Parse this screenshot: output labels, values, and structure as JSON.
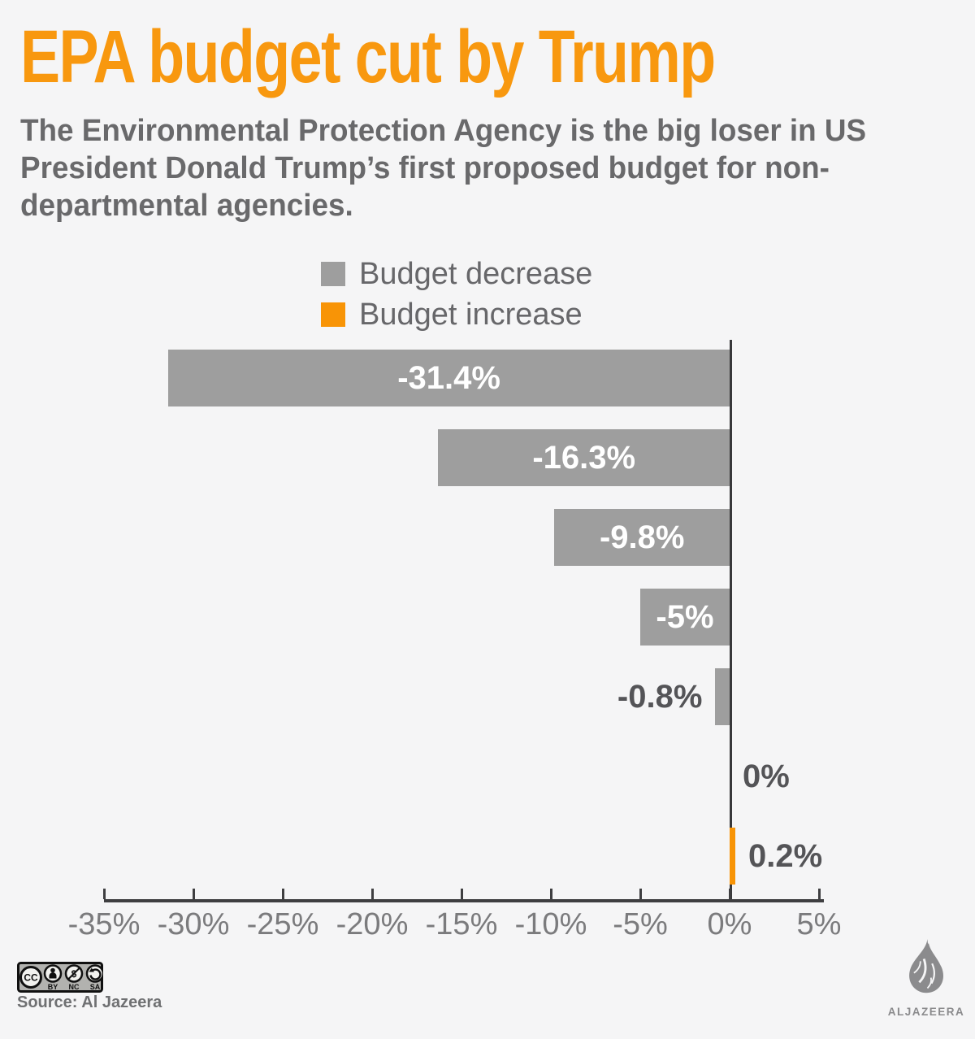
{
  "header": {
    "title": "EPA budget cut by Trump",
    "subtitle": "The Environmental Protection Agency is the big loser in US President Donald Trump’s first proposed budget for non-departmental agencies."
  },
  "legend": {
    "items": [
      {
        "label": "Budget decrease",
        "color": "#9e9e9e"
      },
      {
        "label": "Budget increase",
        "color": "#f89406"
      }
    ]
  },
  "chart_data": {
    "type": "bar",
    "orientation": "horizontal",
    "title": "EPA budget cut by Trump",
    "xlabel": "",
    "ylabel": "",
    "xlim": [
      -35,
      5
    ],
    "grid": false,
    "legend_position": "top",
    "x_tick_values": [
      -35,
      -30,
      -25,
      -20,
      -15,
      -10,
      -5,
      0,
      5
    ],
    "x_tick_labels": [
      "-35%",
      "-30%",
      "-25%",
      "-20%",
      "-15%",
      "-10%",
      "-5%",
      "0%",
      "5%"
    ],
    "colors": {
      "decrease": "#9e9e9e",
      "increase": "#f89406"
    },
    "bars": [
      {
        "value": -31.4,
        "label": "-31.4%",
        "category": "decrease",
        "label_position": "inside"
      },
      {
        "value": -16.3,
        "label": "-16.3%",
        "category": "decrease",
        "label_position": "inside"
      },
      {
        "value": -9.8,
        "label": "-9.8%",
        "category": "decrease",
        "label_position": "inside"
      },
      {
        "value": -5,
        "label": "-5%",
        "category": "decrease",
        "label_position": "inside"
      },
      {
        "value": -0.8,
        "label": "-0.8%",
        "category": "decrease",
        "label_position": "outside-left"
      },
      {
        "value": 0,
        "label": "0%",
        "category": "none",
        "label_position": "outside-right"
      },
      {
        "value": 0.2,
        "label": "0.2%",
        "category": "increase",
        "label_position": "outside-right"
      }
    ]
  },
  "footer": {
    "license_cc": "CC",
    "license_labels": [
      "BY",
      "NC",
      "SA"
    ],
    "source": "Source: Al Jazeera",
    "logo_text": "ALJAZEERA"
  },
  "colors": {
    "background": "#f5f5f6",
    "accent_orange": "#f8980f",
    "bar_gray": "#9e9e9e",
    "axis": "#3f3f41"
  }
}
